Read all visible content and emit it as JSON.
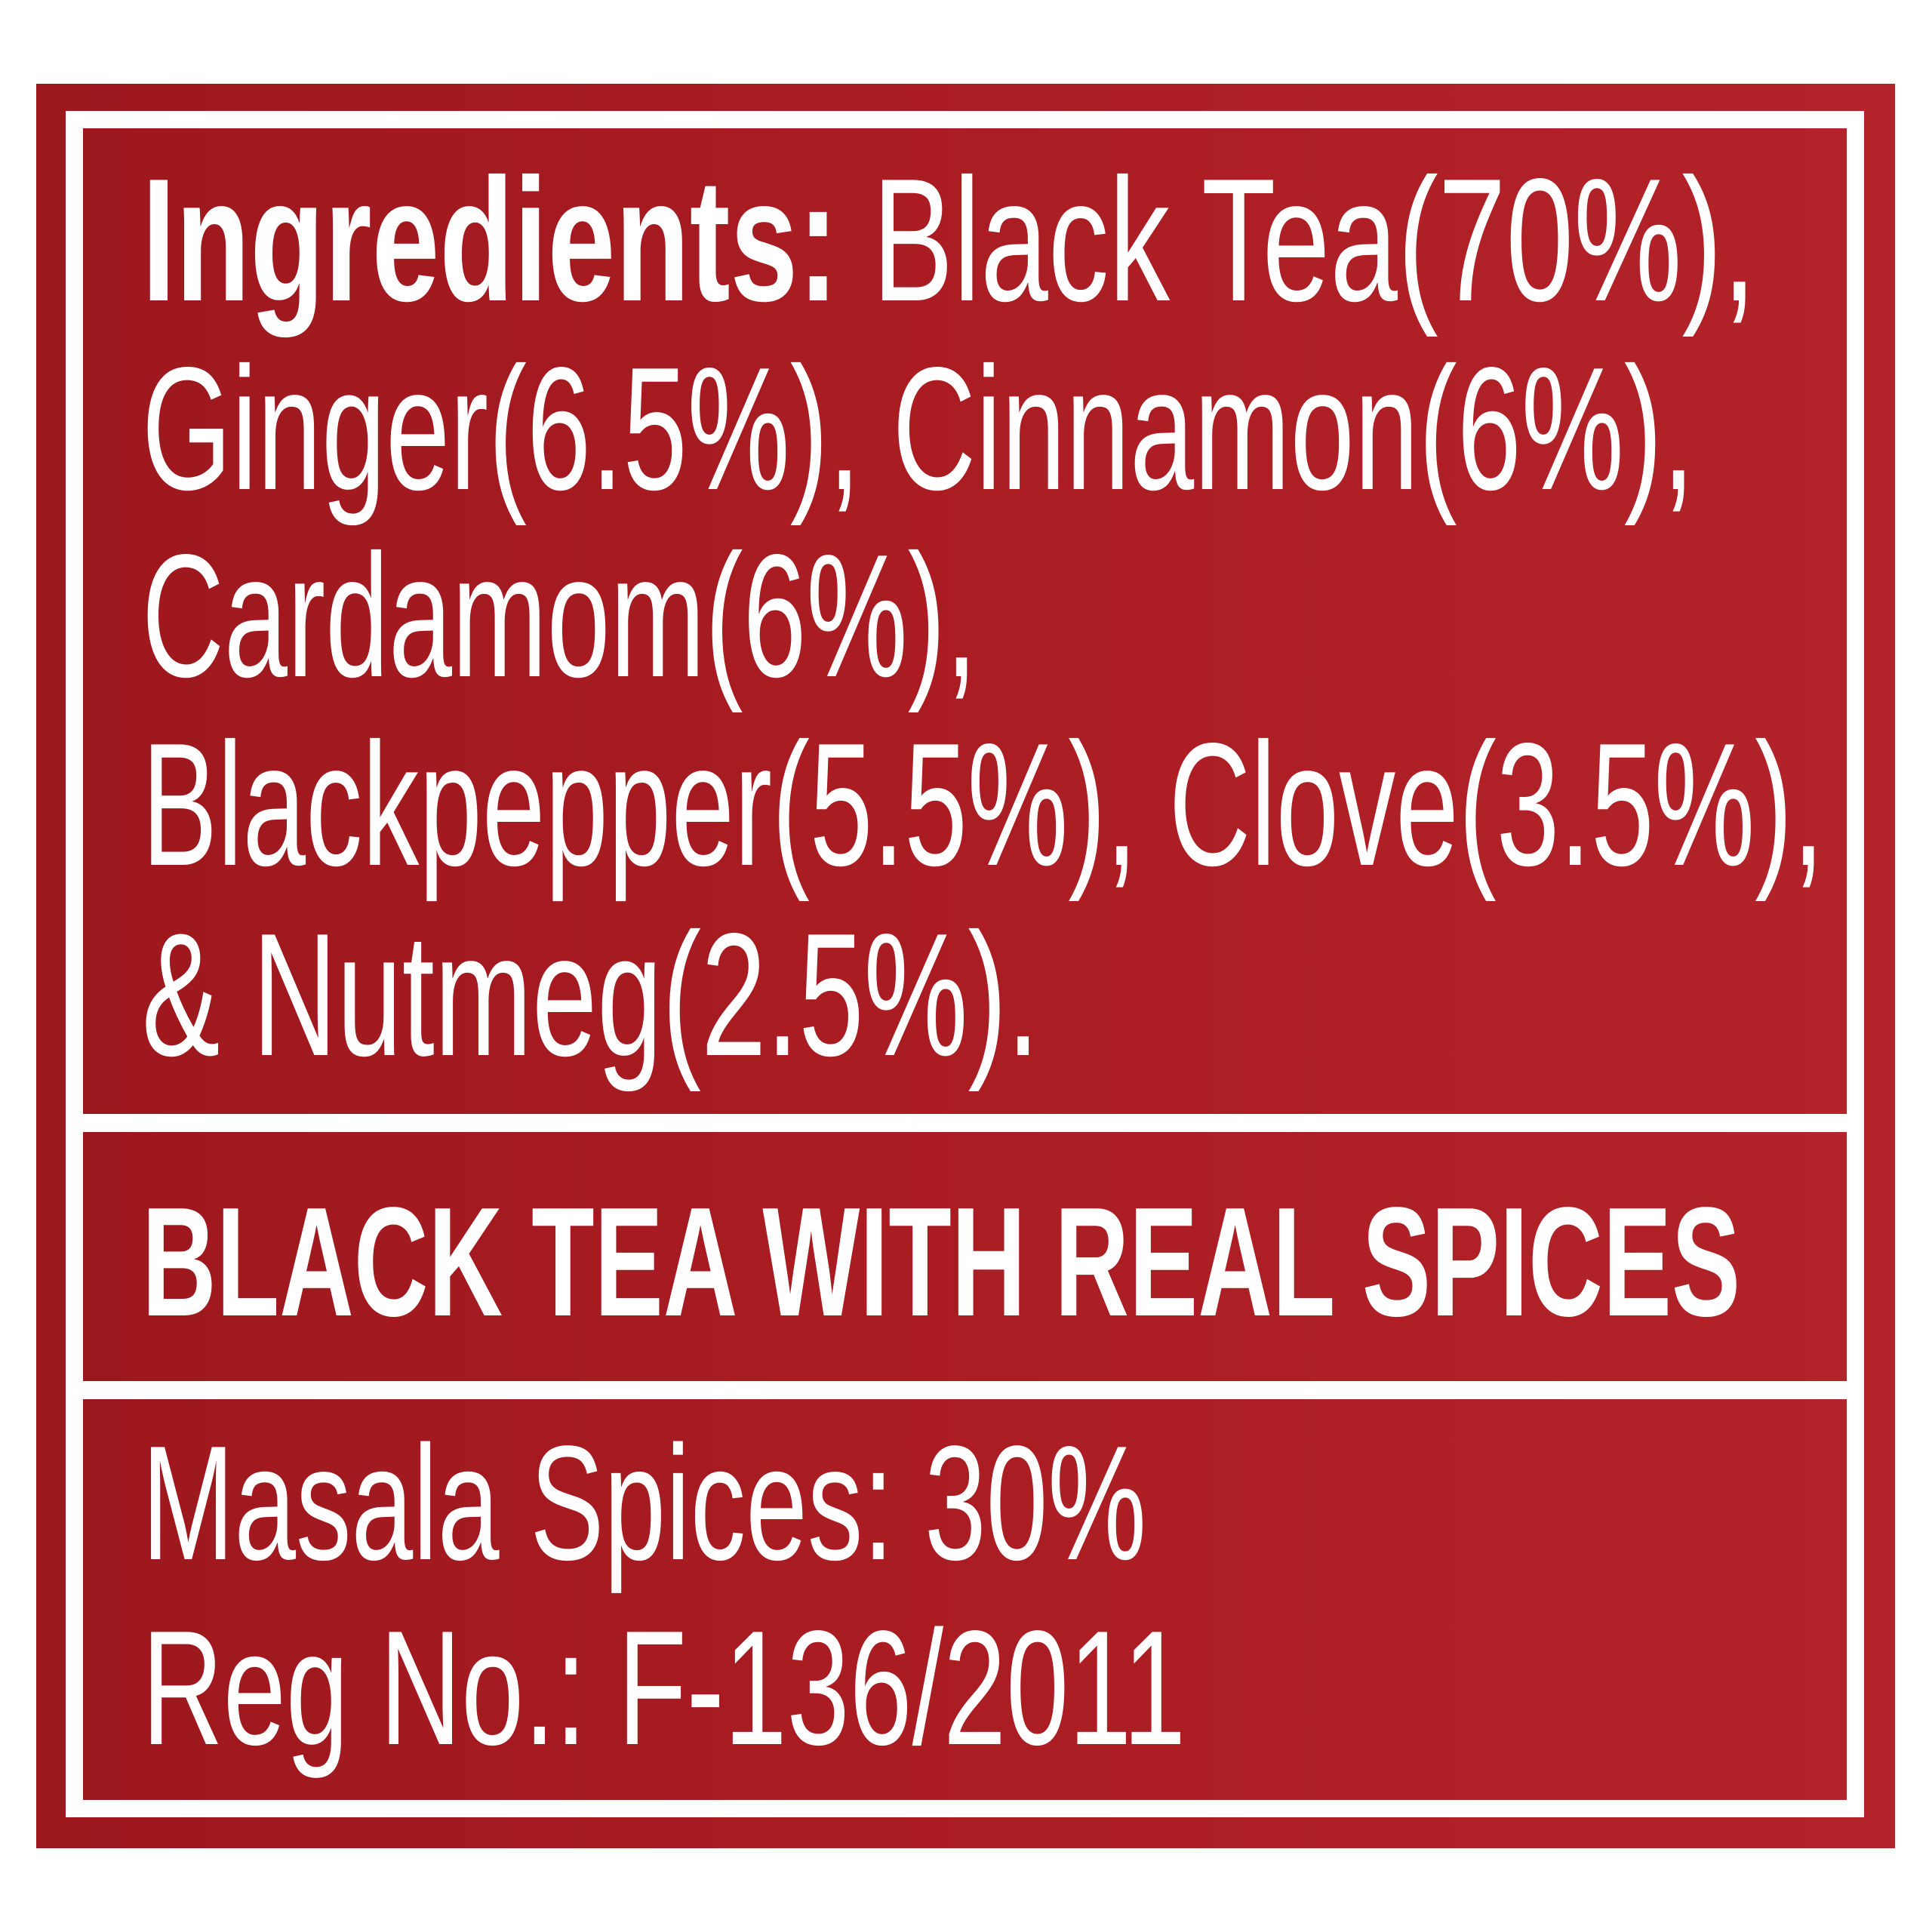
{
  "ingredients": {
    "label": "Ingredients:",
    "lines": [
      " Black Tea(70%),",
      "Ginger(6.5%), Cinnamon(6%),",
      "Cardamom(6%),",
      "Blackpepper(5.5%), Clove(3.5%),",
      "& Nutmeg(2.5%)."
    ]
  },
  "tagline": "BLACK TEA WITH REAL SPICES",
  "details": {
    "masala": "Masala Spices: 30%",
    "reg_no": "Reg No.: F-136/2011"
  },
  "colors": {
    "background": "#a91c22",
    "text": "#ffffff"
  }
}
